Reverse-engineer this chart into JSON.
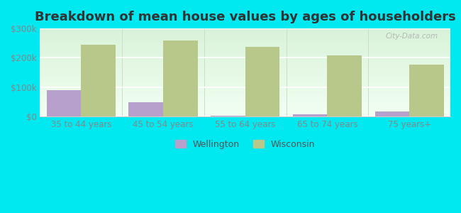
{
  "title": "Breakdown of mean house values by ages of householders",
  "categories": [
    "35 to 44 years",
    "45 to 54 years",
    "55 to 64 years",
    "65 to 74 years",
    "75 years+"
  ],
  "wellington_values": [
    90000,
    50000,
    4000,
    8000,
    18000
  ],
  "wisconsin_values": [
    245000,
    260000,
    238000,
    208000,
    178000
  ],
  "wellington_color": "#b8a0cc",
  "wisconsin_color": "#b8c88a",
  "background_outer": "#00e8f0",
  "ylim": [
    0,
    300000
  ],
  "yticks": [
    0,
    100000,
    200000,
    300000
  ],
  "ytick_labels": [
    "$0",
    "$100k",
    "$200k",
    "$300k"
  ],
  "legend_labels": [
    "Wellington",
    "Wisconsin"
  ],
  "bar_width": 0.42,
  "title_fontsize": 13,
  "tick_fontsize": 8.5,
  "legend_fontsize": 9
}
